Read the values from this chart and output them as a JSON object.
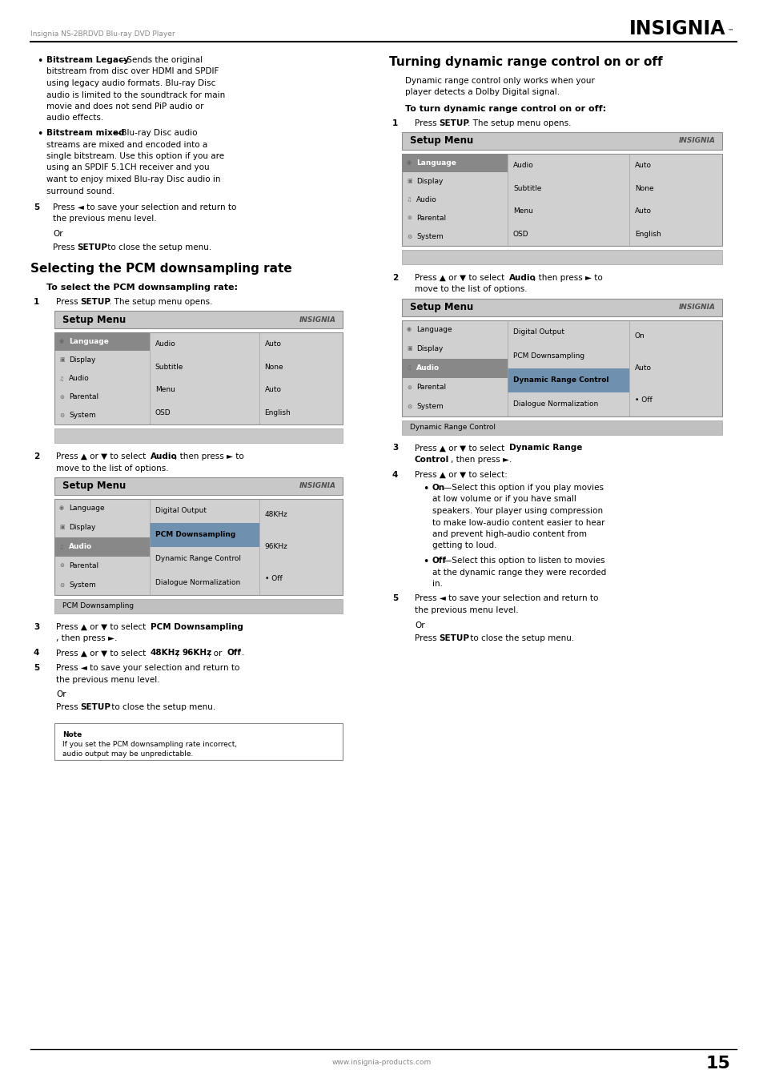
{
  "page_width": 9.54,
  "page_height": 13.51,
  "dpi": 100,
  "bg_color": "#ffffff",
  "header_text": "Insignia NS-2BRDVD Blu-ray DVD Player",
  "brand": "INSIGNIA",
  "footer_text": "www.insignia-products.com",
  "page_number": "15",
  "text_color": "#000000",
  "header_color": "#888888",
  "gray_title_bg": "#c8c8c8",
  "gray_content_bg": "#d0d0d0",
  "gray_footer_bg": "#c0c0c0",
  "col1_highlight": "#888888",
  "col2_highlight_pcm": "#7090b0",
  "col2_highlight_drc": "#7090b0"
}
